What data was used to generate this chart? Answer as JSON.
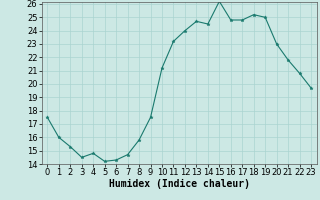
{
  "x": [
    0,
    1,
    2,
    3,
    4,
    5,
    6,
    7,
    8,
    9,
    10,
    11,
    12,
    13,
    14,
    15,
    16,
    17,
    18,
    19,
    20,
    21,
    22,
    23
  ],
  "y": [
    17.5,
    16.0,
    15.3,
    14.5,
    14.8,
    14.2,
    14.3,
    14.7,
    15.8,
    17.5,
    21.2,
    23.2,
    24.0,
    24.7,
    24.5,
    26.2,
    24.8,
    24.8,
    25.2,
    25.0,
    23.0,
    21.8,
    20.8,
    19.7
  ],
  "line_color": "#1a7a6e",
  "marker": "*",
  "marker_size": 2.5,
  "bg_color": "#cce8e4",
  "grid_color": "#aad4d0",
  "xlabel": "Humidex (Indice chaleur)",
  "ylim": [
    14,
    26
  ],
  "xlim": [
    -0.5,
    23.5
  ],
  "yticks": [
    14,
    15,
    16,
    17,
    18,
    19,
    20,
    21,
    22,
    23,
    24,
    25,
    26
  ],
  "xticks": [
    0,
    1,
    2,
    3,
    4,
    5,
    6,
    7,
    8,
    9,
    10,
    11,
    12,
    13,
    14,
    15,
    16,
    17,
    18,
    19,
    20,
    21,
    22,
    23
  ],
  "xlabel_fontsize": 7,
  "tick_fontsize": 6
}
